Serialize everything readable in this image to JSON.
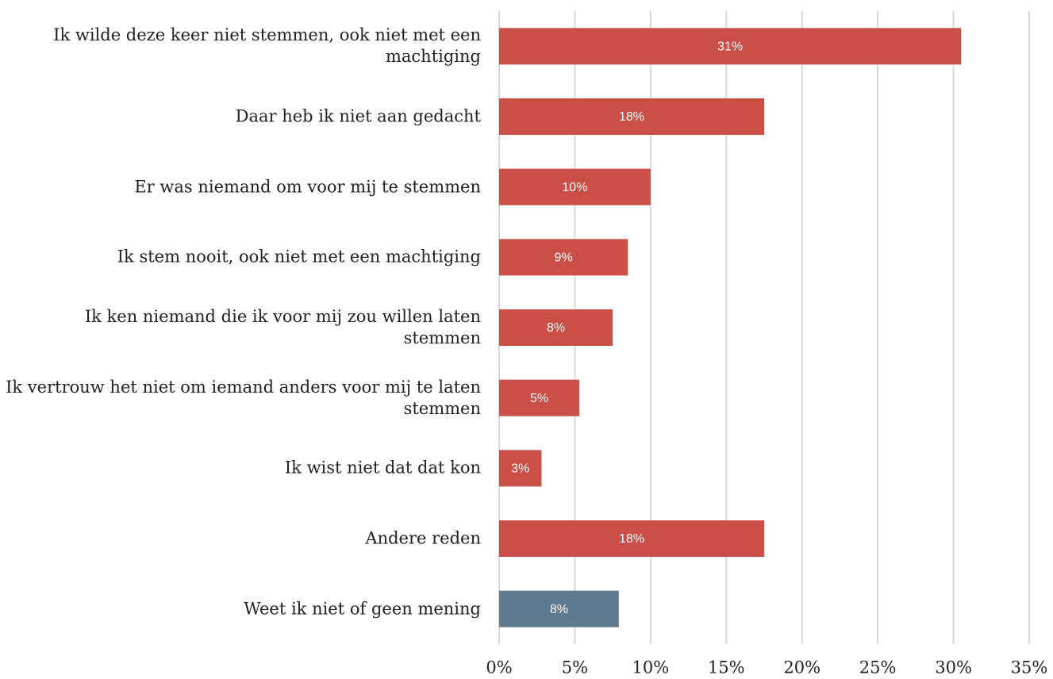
{
  "chart_data": {
    "type": "bar",
    "orientation": "horizontal",
    "categories": [
      "Ik wilde deze keer niet stemmen, ook niet met een machtiging",
      "Daar heb ik niet aan gedacht",
      "Er was niemand om voor mij te stemmen",
      "Ik stem nooit, ook niet met een machtiging",
      "Ik ken niemand die ik voor mij zou willen laten stemmen",
      "Ik vertrouw het niet om iemand anders voor mij te laten stemmen",
      "Ik wist niet dat dat kon",
      "Andere reden",
      "Weet ik niet of geen mening"
    ],
    "values": [
      30.5,
      17.5,
      10,
      8.5,
      7.5,
      5.3,
      2.8,
      17.5,
      7.9
    ],
    "value_labels": [
      "31%",
      "18%",
      "10%",
      "9%",
      "8%",
      "5%",
      "3%",
      "18%",
      "8%"
    ],
    "colors": [
      "#c94f47",
      "#c94f47",
      "#c94f47",
      "#c94f47",
      "#c94f47",
      "#c94f47",
      "#c94f47",
      "#c94f47",
      "#5f7a8f"
    ],
    "xlim": [
      0,
      35
    ],
    "xticks": [
      {
        "value": 0,
        "label": "0%"
      },
      {
        "value": 5,
        "label": "5%"
      },
      {
        "value": 10,
        "label": "10%"
      },
      {
        "value": 15,
        "label": "15%"
      },
      {
        "value": 20,
        "label": "20%"
      },
      {
        "value": 25,
        "label": "25%"
      },
      {
        "value": 30,
        "label": "30%"
      },
      {
        "value": 35,
        "label": "35%"
      }
    ],
    "grid": true
  }
}
